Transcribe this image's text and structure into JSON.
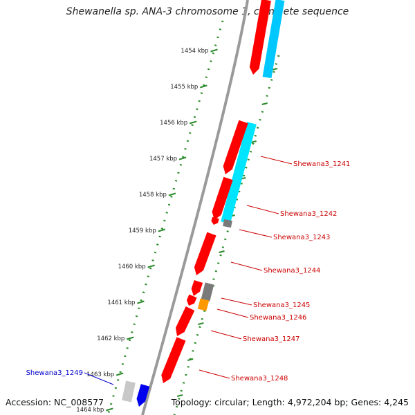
{
  "title": "Shewanella sp. ANA-3 chromosome 1, complete sequence",
  "accession": "Accession: NC_008577",
  "topology": "Topology: circular; Length: 4,972,204 bp; Genes: 4,245",
  "colors": {
    "background": "#ffffff",
    "backbone": "#9a9a9a",
    "cds": "#ff0000",
    "blast_cyan_light": "#00e5ff",
    "blast_cyan_dark": "#00c8ff",
    "gray_feature": "#7a7a7a",
    "orange_feature": "#ff9900",
    "blue_feature": "#0000ee",
    "label_red": "#cc0000",
    "label_blue": "#0000cc",
    "tick_green": "#2a8a2a"
  },
  "kbp_ticks": [
    "1454 kbp",
    "1455 kbp",
    "1456 kbp",
    "1457 kbp",
    "1458 kbp",
    "1459 kbp",
    "1460 kbp",
    "1461 kbp",
    "1462 kbp",
    "1463 kbp",
    "1464 kbp"
  ],
  "gene_labels": [
    {
      "text": "Shewana3_1241",
      "color": "red"
    },
    {
      "text": "Shewana3_1242",
      "color": "red"
    },
    {
      "text": "Shewana3_1243",
      "color": "red"
    },
    {
      "text": "Shewana3_1244",
      "color": "red"
    },
    {
      "text": "Shewana3_1245",
      "color": "red"
    },
    {
      "text": "Shewana3_1246",
      "color": "red"
    },
    {
      "text": "Shewana3_1247",
      "color": "red"
    },
    {
      "text": "Shewana3_1248",
      "color": "red"
    },
    {
      "text": "Shewana3_1249",
      "color": "blue"
    }
  ]
}
